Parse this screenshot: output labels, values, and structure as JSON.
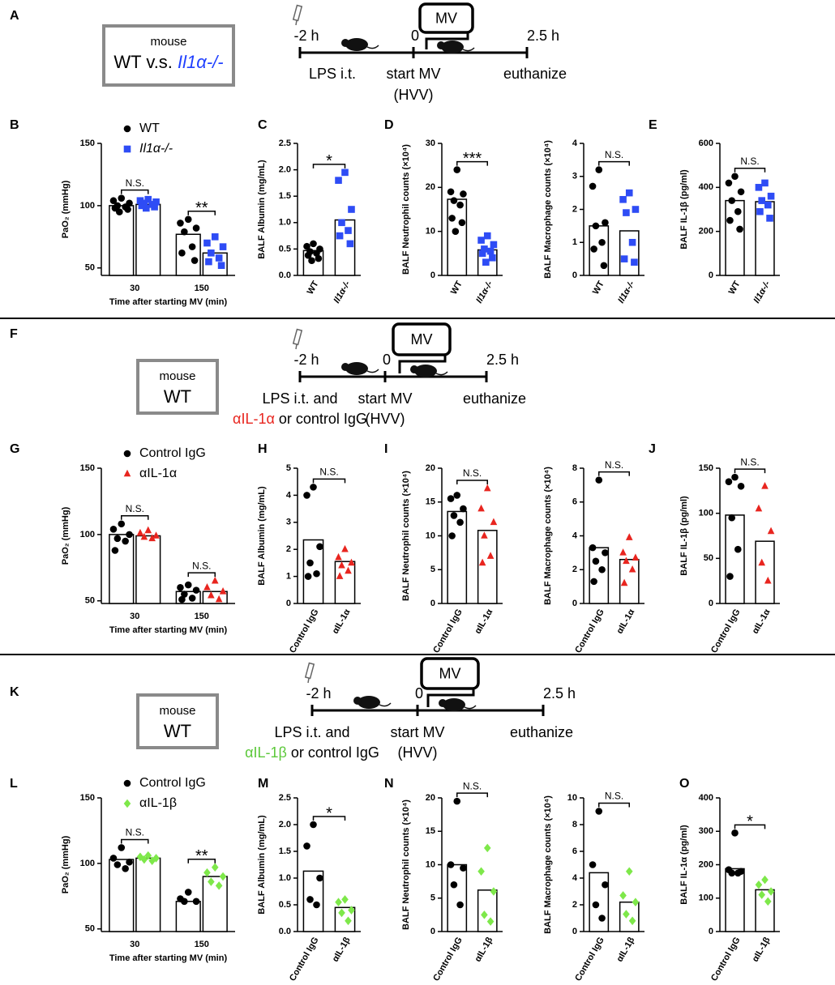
{
  "schematics": [
    {
      "panel": "A",
      "box": [
        [
          {
            "text": "mouse"
          }
        ],
        [
          {
            "text": "WT v.s. "
          },
          {
            "text": "Il1α-/-",
            "color": "#2040ff",
            "italic": true
          }
        ]
      ],
      "times": [
        "-2 h",
        "0",
        "2.5 h"
      ],
      "mv": "MV",
      "columns": [
        [
          [
            {
              "text": "LPS i.t."
            }
          ]
        ],
        [
          [
            {
              "text": "start MV"
            }
          ],
          [
            {
              "text": "(HVV)"
            }
          ]
        ],
        [
          [
            {
              "text": "euthanize"
            }
          ]
        ]
      ]
    },
    {
      "panel": "F",
      "box": [
        [
          {
            "text": "mouse"
          }
        ],
        [
          {
            "text": "WT"
          }
        ]
      ],
      "times": [
        "-2 h",
        "0",
        "2.5 h"
      ],
      "mv": "MV",
      "columns": [
        [
          [
            {
              "text": "LPS i.t. and"
            }
          ],
          [
            {
              "text": "αIL-1α",
              "color": "#e8251f"
            },
            {
              "text": " or control IgG"
            }
          ]
        ],
        [
          [
            {
              "text": "start MV"
            }
          ],
          [
            {
              "text": "(HVV)"
            }
          ]
        ],
        [
          [
            {
              "text": "euthanize"
            }
          ]
        ]
      ]
    },
    {
      "panel": "K",
      "box": [
        [
          {
            "text": "mouse"
          }
        ],
        [
          {
            "text": "WT"
          }
        ]
      ],
      "times": [
        "-2 h",
        "0",
        "2.5 h"
      ],
      "mv": "MV",
      "columns": [
        [
          [
            {
              "text": "LPS i.t. and"
            }
          ],
          [
            {
              "text": "αIL-1β",
              "color": "#5cc83a"
            },
            {
              "text": " or control IgG"
            }
          ]
        ],
        [
          [
            {
              "text": "start MV"
            }
          ],
          [
            {
              "text": "(HVV)"
            }
          ]
        ],
        [
          [
            {
              "text": "euthanize"
            }
          ]
        ]
      ]
    }
  ],
  "chart_data": [
    {
      "type": "grouped",
      "panel": "B",
      "ylabel": "PaO₂ (mmHg)",
      "xlabel": "Time after starting MV (min)",
      "categories": [
        "30",
        "150"
      ],
      "series": [
        {
          "name": "WT",
          "color": "#000000",
          "marker": "circle",
          "italic": false,
          "values": [
            100,
            77
          ],
          "points": [
            [
              106,
              104,
              102,
              100,
              99,
              98,
              97,
              95
            ],
            [
              89,
              86,
              82,
              79,
              67,
              62,
              56
            ]
          ]
        },
        {
          "name": "Il1α-/-",
          "color": "#2e4cf5",
          "marker": "square",
          "italic": true,
          "values": [
            101,
            62
          ],
          "points": [
            [
              105,
              104,
              103,
              102,
              101,
              100,
              99,
              98
            ],
            [
              75,
              70,
              67,
              62,
              58,
              55,
              52
            ]
          ]
        }
      ],
      "significance": [
        "N.S.",
        "**"
      ],
      "ylim": [
        44,
        150
      ],
      "yticks": [
        50,
        100,
        150
      ]
    },
    {
      "type": "bar",
      "panel": "C",
      "ylabel": "BALF Albumin (mg/mL)",
      "categories": [
        "WT",
        "Il1α-/-"
      ],
      "category_italic": [
        false,
        true
      ],
      "colors": [
        "#000000",
        "#2e4cf5"
      ],
      "markers": [
        "circle",
        "square"
      ],
      "values": [
        0.47,
        1.05
      ],
      "points": [
        [
          0.6,
          0.55,
          0.5,
          0.45,
          0.42,
          0.38,
          0.32,
          0.28
        ],
        [
          1.95,
          1.8,
          1.25,
          1.0,
          0.85,
          0.75,
          0.6
        ]
      ],
      "significance": "*",
      "ylim": [
        0,
        2.5
      ],
      "yticks": [
        {
          "value": 0,
          "label": "0.0"
        },
        0.5,
        {
          "value": 1,
          "label": "1.0"
        },
        1.5,
        {
          "value": 2,
          "label": "2.0"
        },
        2.5
      ]
    },
    {
      "type": "bar",
      "panel": "D",
      "ylabel": "BALF Neutrophil counts (×10⁴)",
      "categories": [
        "WT",
        "Il1α-/-"
      ],
      "category_italic": [
        false,
        true
      ],
      "colors": [
        "#000000",
        "#2e4cf5"
      ],
      "markers": [
        "circle",
        "square"
      ],
      "values": [
        17.3,
        5.8
      ],
      "points": [
        [
          24,
          19,
          18.5,
          17,
          16,
          13,
          12,
          10
        ],
        [
          9,
          8,
          7,
          6,
          5.5,
          5,
          4,
          3
        ]
      ],
      "significance": "***",
      "ylim": [
        0,
        30
      ],
      "yticks": [
        0,
        10,
        20,
        30
      ]
    },
    {
      "type": "bar",
      "ylabel": "BALF Macrophage counts (×10⁴)",
      "categories": [
        "WT",
        "Il1α-/-"
      ],
      "category_italic": [
        false,
        true
      ],
      "colors": [
        "#000000",
        "#2e4cf5"
      ],
      "markers": [
        "circle",
        "square"
      ],
      "values": [
        1.5,
        1.35
      ],
      "points": [
        [
          3.2,
          2.7,
          1.6,
          1.5,
          1.0,
          0.8,
          0.3
        ],
        [
          2.5,
          2.3,
          2.0,
          1.9,
          1.0,
          0.5,
          0.4
        ]
      ],
      "significance": "N.S.",
      "ylim": [
        0,
        4
      ],
      "yticks": [
        0,
        1,
        2,
        3,
        4
      ]
    },
    {
      "type": "bar",
      "panel": "E",
      "ylabel": "BALF IL-1β (pg/ml)",
      "categories": [
        "WT",
        "Il1α-/-"
      ],
      "category_italic": [
        false,
        true
      ],
      "colors": [
        "#000000",
        "#2e4cf5"
      ],
      "markers": [
        "circle",
        "square"
      ],
      "values": [
        340,
        335
      ],
      "points": [
        [
          450,
          420,
          380,
          340,
          290,
          250,
          210
        ],
        [
          420,
          400,
          360,
          340,
          320,
          290,
          260
        ]
      ],
      "significance": "N.S.",
      "ylim": [
        0,
        600
      ],
      "yticks": [
        0,
        200,
        400,
        600
      ]
    },
    {
      "type": "grouped",
      "panel": "G",
      "ylabel": "PaO₂ (mmHg)",
      "xlabel": "Time after starting MV (min)",
      "categories": [
        "30",
        "150"
      ],
      "series": [
        {
          "name": "Control IgG",
          "color": "#000000",
          "marker": "circle",
          "italic": false,
          "values": [
            100,
            57
          ],
          "points": [
            [
              108,
              104,
              100,
              97,
              95,
              88
            ],
            [
              62,
              60,
              58,
              55,
              52,
              51
            ]
          ]
        },
        {
          "name": "αIL-1α",
          "color": "#e8251f",
          "marker": "triangle",
          "italic": false,
          "values": [
            99,
            57
          ],
          "points": [
            [
              103,
              101,
              99,
              98,
              97
            ],
            [
              65,
              60,
              57,
              54,
              51
            ]
          ]
        }
      ],
      "significance": [
        "N.S.",
        "N.S."
      ],
      "ylim": [
        48,
        150
      ],
      "yticks": [
        50,
        100,
        150
      ]
    },
    {
      "type": "bar",
      "panel": "H",
      "ylabel": "BALF Albumin (mg/mL)",
      "categories": [
        "Control IgG",
        "αIL-1α"
      ],
      "category_italic": [
        false,
        false
      ],
      "colors": [
        "#000000",
        "#e8251f"
      ],
      "markers": [
        "circle",
        "triangle"
      ],
      "values": [
        2.35,
        1.55
      ],
      "points": [
        [
          4.3,
          4.0,
          2.1,
          1.5,
          1.1,
          1.0
        ],
        [
          2.0,
          1.7,
          1.5,
          1.4,
          1.2,
          1.0
        ]
      ],
      "significance": "N.S.",
      "ylim": [
        0,
        5
      ],
      "yticks": [
        0,
        1,
        2,
        3,
        4,
        5
      ]
    },
    {
      "type": "bar",
      "panel": "I",
      "ylabel": "BALF Neutrophil counts (×10⁴)",
      "categories": [
        "Control IgG",
        "αIL-1α"
      ],
      "category_italic": [
        false,
        false
      ],
      "colors": [
        "#000000",
        "#e8251f"
      ],
      "markers": [
        "circle",
        "triangle"
      ],
      "values": [
        13.6,
        10.8
      ],
      "points": [
        [
          16,
          15.5,
          14,
          13,
          12,
          10
        ],
        [
          17,
          14,
          12,
          10,
          7,
          6
        ]
      ],
      "significance": "N.S.",
      "ylim": [
        0,
        20
      ],
      "yticks": [
        0,
        5,
        10,
        15,
        20
      ]
    },
    {
      "type": "bar",
      "ylabel": "BALF Macrophage counts (×10⁴)",
      "categories": [
        "Control IgG",
        "αIL-1α"
      ],
      "category_italic": [
        false,
        false
      ],
      "colors": [
        "#000000",
        "#e8251f"
      ],
      "markers": [
        "circle",
        "triangle"
      ],
      "values": [
        3.3,
        2.6
      ],
      "points": [
        [
          7.3,
          3.3,
          3.0,
          2.5,
          2.0,
          1.3
        ],
        [
          3.9,
          3.0,
          2.7,
          2.5,
          2.0,
          1.2
        ]
      ],
      "significance": "N.S.",
      "ylim": [
        0,
        8
      ],
      "yticks": [
        0,
        2,
        4,
        6,
        8
      ]
    },
    {
      "type": "bar",
      "panel": "J",
      "ylabel": "BALF IL-1β (pg/ml)",
      "categories": [
        "Control IgG",
        "αIL-1α"
      ],
      "category_italic": [
        false,
        false
      ],
      "colors": [
        "#000000",
        "#e8251f"
      ],
      "markers": [
        "circle",
        "triangle"
      ],
      "values": [
        98,
        69
      ],
      "points": [
        [
          140,
          135,
          130,
          95,
          60,
          30
        ],
        [
          130,
          105,
          80,
          45,
          25
        ]
      ],
      "significance": "N.S.",
      "ylim": [
        0,
        150
      ],
      "yticks": [
        0,
        50,
        100,
        150
      ]
    },
    {
      "type": "grouped",
      "panel": "L",
      "ylabel": "PaO₂ (mmHg)",
      "xlabel": "Time after starting MV (min)",
      "categories": [
        "30",
        "150"
      ],
      "series": [
        {
          "name": "Control IgG",
          "color": "#000000",
          "marker": "circle",
          "italic": false,
          "values": [
            103,
            71
          ],
          "points": [
            [
              112,
              104,
              101,
              99,
              96
            ],
            [
              78,
              73,
              71,
              71
            ]
          ]
        },
        {
          "name": "αIL-1β",
          "color": "#7ee84a",
          "marker": "diamond",
          "italic": false,
          "values": [
            104,
            90
          ],
          "points": [
            [
              106,
              105,
              104,
              103,
              102
            ],
            [
              97,
              93,
              90,
              86,
              83
            ]
          ]
        }
      ],
      "significance": [
        "N.S.",
        "**"
      ],
      "ylim": [
        48,
        150
      ],
      "yticks": [
        50,
        100,
        150
      ]
    },
    {
      "type": "bar",
      "panel": "M",
      "ylabel": "BALF Albumin (mg/mL)",
      "categories": [
        "Control IgG",
        "αIL-1β"
      ],
      "category_italic": [
        false,
        false
      ],
      "colors": [
        "#000000",
        "#7ee84a"
      ],
      "markers": [
        "circle",
        "diamond"
      ],
      "values": [
        1.13,
        0.45
      ],
      "points": [
        [
          2.0,
          1.6,
          1.0,
          0.6,
          0.5
        ],
        [
          0.6,
          0.55,
          0.4,
          0.35,
          0.2
        ]
      ],
      "significance": "*",
      "ylim": [
        0,
        2.5
      ],
      "yticks": [
        {
          "value": 0,
          "label": "0.0"
        },
        0.5,
        {
          "value": 1,
          "label": "1.0"
        },
        1.5,
        {
          "value": 2,
          "label": "2.0"
        },
        2.5
      ]
    },
    {
      "type": "bar",
      "panel": "N",
      "ylabel": "BALF Neutrophil counts (×10⁴)",
      "categories": [
        "Control IgG",
        "αIL-1β"
      ],
      "category_italic": [
        false,
        false
      ],
      "colors": [
        "#000000",
        "#7ee84a"
      ],
      "markers": [
        "circle",
        "diamond"
      ],
      "values": [
        10,
        6.2
      ],
      "points": [
        [
          19.5,
          10,
          9.5,
          7,
          4
        ],
        [
          12.5,
          9,
          6,
          2.5,
          1.5
        ]
      ],
      "significance": "N.S.",
      "ylim": [
        0,
        20
      ],
      "yticks": [
        0,
        5,
        10,
        15,
        20
      ]
    },
    {
      "type": "bar",
      "ylabel": "BALF Macrophage counts (×10⁴)",
      "categories": [
        "Control IgG",
        "αIL-1β"
      ],
      "category_italic": [
        false,
        false
      ],
      "colors": [
        "#000000",
        "#7ee84a"
      ],
      "markers": [
        "circle",
        "diamond"
      ],
      "values": [
        4.4,
        2.2
      ],
      "points": [
        [
          9,
          5,
          3.5,
          2,
          1.0
        ],
        [
          4.5,
          2.7,
          2.2,
          1.3,
          0.8
        ]
      ],
      "significance": "N.S.",
      "ylim": [
        0,
        10
      ],
      "yticks": [
        0,
        2,
        4,
        6,
        8,
        10
      ]
    },
    {
      "type": "bar",
      "panel": "O",
      "ylabel": "BALF IL-1α (pg/ml)",
      "categories": [
        "Control IgG",
        "αIL-1β"
      ],
      "category_italic": [
        false,
        false
      ],
      "colors": [
        "#000000",
        "#7ee84a"
      ],
      "markers": [
        "circle",
        "diamond"
      ],
      "values": [
        188,
        125
      ],
      "points": [
        [
          295,
          185,
          180,
          175,
          175
        ],
        [
          155,
          140,
          120,
          110,
          90
        ]
      ],
      "significance": "*",
      "ylim": [
        0,
        400
      ],
      "yticks": [
        0,
        100,
        200,
        300,
        400
      ]
    }
  ]
}
